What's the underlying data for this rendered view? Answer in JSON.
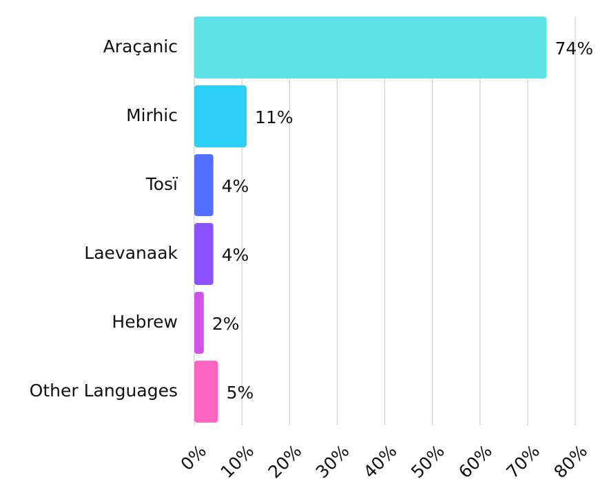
{
  "chart_data": {
    "type": "barh",
    "categories": [
      "Araçanic",
      "Mirhic",
      "Tosï",
      "Laevanaak",
      "Hebrew",
      "Other Languages"
    ],
    "values": [
      74,
      11,
      4,
      4,
      2,
      5
    ],
    "value_labels": [
      "74%",
      "11%",
      "4%",
      "4%",
      "2%",
      "5%"
    ],
    "colors": [
      "#5ce1e6",
      "#2dcff5",
      "#5170ff",
      "#8c52ff",
      "#d152e6",
      "#ff66c4"
    ],
    "xlim": [
      0,
      80
    ],
    "xticks": [
      {
        "value": 0,
        "label": "0%"
      },
      {
        "value": 10,
        "label": "10%"
      },
      {
        "value": 20,
        "label": "20%"
      },
      {
        "value": 30,
        "label": "30%"
      },
      {
        "value": 40,
        "label": "40%"
      },
      {
        "value": 50,
        "label": "50%"
      },
      {
        "value": 60,
        "label": "60%"
      },
      {
        "value": 70,
        "label": "70%"
      },
      {
        "value": 80,
        "label": "80%"
      }
    ],
    "grid": true
  }
}
